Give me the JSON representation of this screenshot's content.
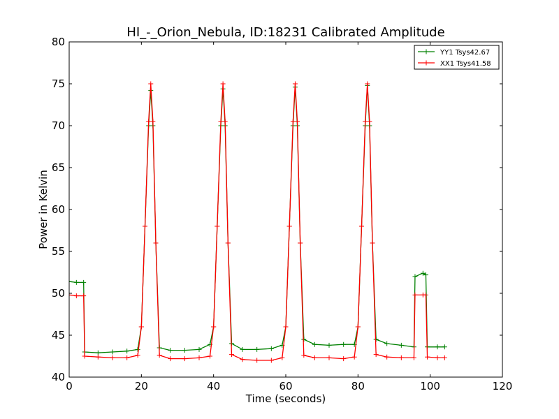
{
  "chart_data": {
    "type": "line",
    "title": "HI_-_Orion_Nebula, ID:18231 Calibrated Amplitude",
    "xlabel": "Time (seconds)",
    "ylabel": "Power in Kelvin",
    "xlim": [
      0,
      120
    ],
    "ylim": [
      40,
      80
    ],
    "x_ticks": [
      "0",
      "20",
      "40",
      "60",
      "80",
      "100",
      "120"
    ],
    "y_ticks": [
      "40",
      "45",
      "50",
      "55",
      "60",
      "65",
      "70",
      "75",
      "80"
    ],
    "grid": false,
    "legend_position": "top-right",
    "markers": "plus",
    "series": [
      {
        "name": "YY1 Tsys42.67",
        "color": "#008000",
        "points": [
          [
            0,
            51.4
          ],
          [
            2,
            51.3
          ],
          [
            4,
            51.3
          ],
          [
            4.3,
            43.0
          ],
          [
            8,
            42.9
          ],
          [
            12,
            43.0
          ],
          [
            16,
            43.1
          ],
          [
            19,
            43.3
          ],
          [
            20,
            46.0
          ],
          [
            21,
            58.0
          ],
          [
            22,
            70.0
          ],
          [
            22.6,
            74.2
          ],
          [
            23.2,
            70.0
          ],
          [
            24,
            56.0
          ],
          [
            25,
            43.5
          ],
          [
            28,
            43.2
          ],
          [
            32,
            43.2
          ],
          [
            36,
            43.3
          ],
          [
            39,
            43.9
          ],
          [
            40,
            46.0
          ],
          [
            41,
            58.0
          ],
          [
            42,
            70.0
          ],
          [
            42.6,
            74.4
          ],
          [
            43.2,
            70.0
          ],
          [
            44,
            56.0
          ],
          [
            45,
            44.0
          ],
          [
            48,
            43.3
          ],
          [
            52,
            43.3
          ],
          [
            56,
            43.4
          ],
          [
            59,
            43.8
          ],
          [
            60,
            46.0
          ],
          [
            61,
            58.0
          ],
          [
            62,
            70.0
          ],
          [
            62.6,
            74.6
          ],
          [
            63.2,
            70.0
          ],
          [
            64,
            56.0
          ],
          [
            65,
            44.5
          ],
          [
            68,
            43.9
          ],
          [
            72,
            43.8
          ],
          [
            76,
            43.9
          ],
          [
            79,
            43.9
          ],
          [
            80,
            46.0
          ],
          [
            81,
            58.0
          ],
          [
            82,
            70.0
          ],
          [
            82.6,
            74.8
          ],
          [
            83.2,
            70.0
          ],
          [
            84,
            56.0
          ],
          [
            85,
            44.5
          ],
          [
            88,
            44.0
          ],
          [
            92,
            43.8
          ],
          [
            95.5,
            43.6
          ],
          [
            95.8,
            52.0
          ],
          [
            98,
            52.4
          ],
          [
            98.8,
            52.2
          ],
          [
            99.2,
            43.6
          ],
          [
            102,
            43.6
          ],
          [
            104,
            43.6
          ]
        ]
      },
      {
        "name": "XX1 Tsys41.58",
        "color": "#ff0000",
        "points": [
          [
            0,
            49.8
          ],
          [
            2,
            49.7
          ],
          [
            4,
            49.7
          ],
          [
            4.3,
            42.5
          ],
          [
            8,
            42.4
          ],
          [
            12,
            42.3
          ],
          [
            16,
            42.3
          ],
          [
            19,
            42.6
          ],
          [
            20,
            46.0
          ],
          [
            21,
            58.0
          ],
          [
            22,
            70.5
          ],
          [
            22.6,
            75.0
          ],
          [
            23.2,
            70.5
          ],
          [
            24,
            56.0
          ],
          [
            25,
            42.6
          ],
          [
            28,
            42.2
          ],
          [
            32,
            42.2
          ],
          [
            36,
            42.3
          ],
          [
            39,
            42.5
          ],
          [
            40,
            46.0
          ],
          [
            41,
            58.0
          ],
          [
            42,
            70.5
          ],
          [
            42.6,
            75.0
          ],
          [
            43.2,
            70.5
          ],
          [
            44,
            56.0
          ],
          [
            45,
            42.7
          ],
          [
            48,
            42.1
          ],
          [
            52,
            42.0
          ],
          [
            56,
            42.0
          ],
          [
            59,
            42.3
          ],
          [
            60,
            46.0
          ],
          [
            61,
            58.0
          ],
          [
            62,
            70.5
          ],
          [
            62.6,
            75.0
          ],
          [
            63.2,
            70.5
          ],
          [
            64,
            56.0
          ],
          [
            65,
            42.6
          ],
          [
            68,
            42.3
          ],
          [
            72,
            42.3
          ],
          [
            76,
            42.2
          ],
          [
            79,
            42.4
          ],
          [
            80,
            46.0
          ],
          [
            81,
            58.0
          ],
          [
            82,
            70.5
          ],
          [
            82.6,
            75.0
          ],
          [
            83.2,
            70.5
          ],
          [
            84,
            56.0
          ],
          [
            85,
            42.7
          ],
          [
            88,
            42.4
          ],
          [
            92,
            42.3
          ],
          [
            95.5,
            42.3
          ],
          [
            95.8,
            49.8
          ],
          [
            98,
            49.8
          ],
          [
            98.8,
            49.8
          ],
          [
            99.2,
            42.4
          ],
          [
            102,
            42.3
          ],
          [
            104,
            42.3
          ]
        ]
      }
    ]
  }
}
